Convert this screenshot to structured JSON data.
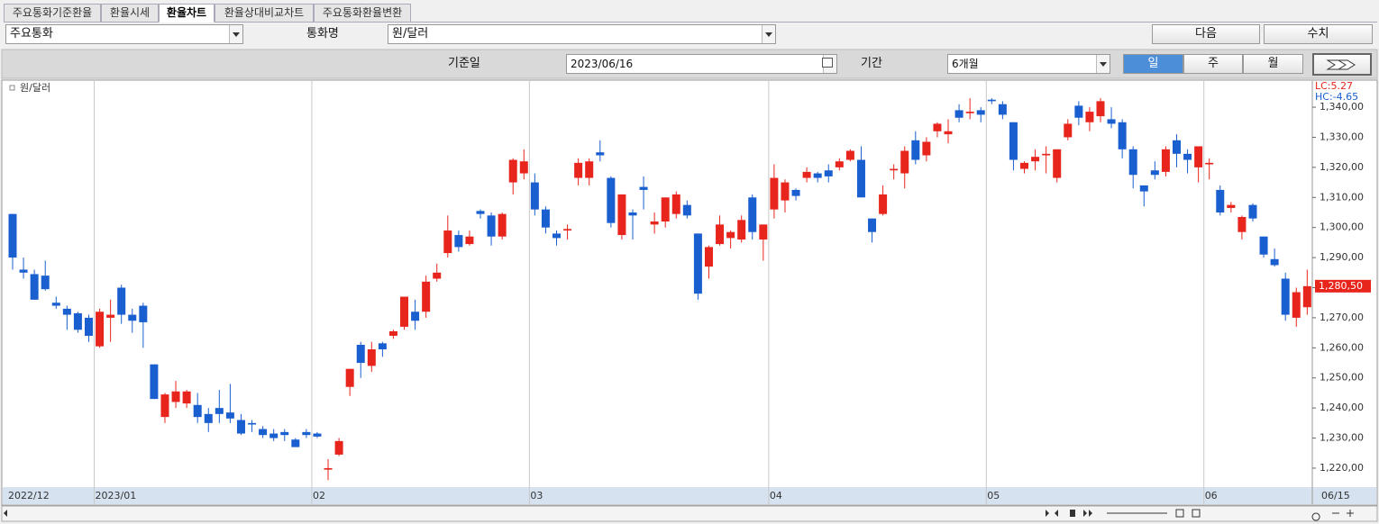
{
  "tabs": [
    "주요통화기준환율",
    "환율시세",
    "환율차트",
    "환율상대비교차트",
    "주요통화환율변환"
  ],
  "toolbar": {
    "group_select": "주요통화",
    "currency_label": "통화명",
    "currency_select": "원/달러",
    "next_button": "다음",
    "value_button": "수치",
    "date_label": "기준일",
    "date": "2023/06/16",
    "period_label": "기간",
    "period_select": "6개월",
    "interval_buttons": [
      "일",
      "주",
      "월"
    ]
  },
  "chart_data": {
    "type": "candlestick",
    "series_name": "원/달러",
    "lc_label": "LC:5.27",
    "hc_label": "HC:-4.65",
    "up_color": "#e8251c",
    "down_color": "#1a5fd0",
    "last_price": {
      "value": 1280.5,
      "label": "1,280,50"
    },
    "ylim": [
      1213.7,
      1348.7
    ],
    "yticks": [
      {
        "value": 1220,
        "label": "1,220,00"
      },
      {
        "value": 1230,
        "label": "1,230,00"
      },
      {
        "value": 1240,
        "label": "1,240,00"
      },
      {
        "value": 1250,
        "label": "1,250,00"
      },
      {
        "value": 1260,
        "label": "1,260,00"
      },
      {
        "value": 1270,
        "label": "1,270,00"
      },
      {
        "value": 1280,
        "label": "1,280,00"
      },
      {
        "value": 1290,
        "label": "1,290,00"
      },
      {
        "value": 1300,
        "label": "1,300,00"
      },
      {
        "value": 1310,
        "label": "1,310,00"
      },
      {
        "value": 1320,
        "label": "1,320,00"
      },
      {
        "value": 1330,
        "label": "1,330,00"
      },
      {
        "value": 1340,
        "label": "1,340,00"
      }
    ],
    "categories": [
      "2022/12",
      null,
      null,
      null,
      null,
      null,
      null,
      null,
      "2023/01",
      null,
      null,
      null,
      null,
      null,
      null,
      null,
      null,
      null,
      null,
      null,
      null,
      null,
      null,
      null,
      null,
      null,
      null,
      null,
      "02",
      null,
      null,
      null,
      null,
      null,
      null,
      null,
      null,
      null,
      null,
      null,
      null,
      null,
      null,
      null,
      null,
      null,
      null,
      null,
      "03",
      null,
      null,
      null,
      null,
      null,
      null,
      null,
      null,
      null,
      null,
      null,
      null,
      null,
      null,
      null,
      null,
      null,
      null,
      null,
      null,
      null,
      "04",
      null,
      null,
      null,
      null,
      null,
      null,
      null,
      null,
      null,
      null,
      null,
      null,
      null,
      null,
      null,
      null,
      null,
      null,
      null,
      "05",
      null,
      null,
      null,
      null,
      null,
      null,
      null,
      null,
      null,
      null,
      null,
      null,
      null,
      null,
      null,
      null,
      null,
      null,
      null,
      "06",
      null,
      null,
      null,
      null,
      null,
      null,
      null,
      null,
      "06/15"
    ],
    "open": [
      1304.5,
      1286,
      1284.5,
      1284,
      1275,
      1273,
      1271.5,
      1270,
      1260.5,
      1270,
      1280,
      1271,
      1274,
      1254.5,
      1237,
      1242,
      1241.5,
      1241,
      1238,
      1240,
      1238.5,
      1236,
      1235,
      1233,
      1231.5,
      1232,
      1229.5,
      1232,
      1231.5,
      1219.5,
      1224.5,
      1247,
      1261,
      1254,
      1261.5,
      1264,
      1267,
      1272,
      1272,
      1283,
      1291.5,
      1297.5,
      1294.5,
      1305.5,
      1304,
      1297,
      1315,
      1318,
      1315,
      1306,
      1298,
      1299,
      1316.5,
      1316.5,
      1325,
      1316.5,
      1297.5,
      1305,
      1313.5,
      1301,
      1302,
      1304.5,
      1307.5,
      1298,
      1287,
      1294.5,
      1296.5,
      1296,
      1310,
      1296,
      1306,
      1309,
      1312.5,
      1316.5,
      1318,
      1319,
      1320,
      1322.5,
      1322.5,
      1303,
      1304.5,
      1319,
      1318,
      1329,
      1324,
      1332,
      1331,
      1339,
      1338,
      1339,
      1342.5,
      1341,
      1335,
      1319.5,
      1322,
      1324,
      1316.5,
      1330,
      1340.5,
      1335,
      1337,
      1336,
      1335,
      1326,
      1314,
      1319,
      1318.5,
      1329,
      1324.5,
      1320,
      1321,
      1312.5,
      1306.5,
      1298.5,
      1307.5,
      1297,
      1289.5,
      1283,
      1270,
      1273.5
    ],
    "high": [
      1304.5,
      1290,
      1286,
      1289,
      1277,
      1274,
      1272,
      1271,
      1273,
      1276,
      1281,
      1273,
      1275,
      1254.5,
      1245,
      1249,
      1246,
      1245,
      1240,
      1246,
      1248,
      1238,
      1236,
      1234,
      1233,
      1233,
      1230,
      1233,
      1232,
      1223,
      1230,
      1253,
      1262,
      1262,
      1262,
      1266,
      1277,
      1276,
      1284,
      1288,
      1304,
      1299,
      1299,
      1306,
      1305,
      1305,
      1323,
      1326,
      1318,
      1307,
      1299,
      1301,
      1323,
      1323,
      1329,
      1317,
      1311,
      1306,
      1317,
      1305,
      1310,
      1312,
      1309,
      1298,
      1294,
      1304,
      1299,
      1304,
      1311,
      1301,
      1321,
      1316,
      1313,
      1320,
      1318.5,
      1321,
      1323,
      1326,
      1327,
      1303,
      1314,
      1321,
      1327,
      1332,
      1330,
      1335,
      1336,
      1341,
      1343,
      1340,
      1343,
      1342,
      1335,
      1322,
      1326,
      1327,
      1326,
      1336,
      1342,
      1340,
      1343,
      1340,
      1336,
      1327,
      1314,
      1322,
      1327,
      1331,
      1326,
      1327,
      1323,
      1314,
      1308.5,
      1304,
      1308,
      1297,
      1293,
      1285,
      1280,
      1286
    ],
    "low": [
      1286,
      1283,
      1276,
      1279,
      1273,
      1266,
      1265,
      1262,
      1260,
      1262,
      1268,
      1265,
      1260,
      1243,
      1235,
      1240,
      1240,
      1235,
      1232,
      1235,
      1235,
      1231,
      1232,
      1230,
      1229,
      1229,
      1227,
      1230,
      1230,
      1216,
      1224,
      1244,
      1250,
      1252,
      1257,
      1263,
      1266,
      1266,
      1270,
      1282,
      1290,
      1292,
      1294,
      1303,
      1294,
      1296,
      1311,
      1316,
      1304,
      1298,
      1294,
      1296,
      1314,
      1314,
      1322,
      1300,
      1296,
      1296,
      1306,
      1298,
      1300,
      1303,
      1303,
      1276,
      1283,
      1294,
      1293,
      1295,
      1296,
      1289,
      1303,
      1305,
      1309,
      1315,
      1315,
      1315,
      1319,
      1322,
      1310,
      1295,
      1304,
      1316,
      1313,
      1321,
      1322,
      1330,
      1328,
      1335,
      1336,
      1335,
      1341,
      1336,
      1319,
      1318,
      1319,
      1318,
      1315,
      1329,
      1334,
      1332,
      1335,
      1333,
      1323,
      1313,
      1307,
      1316,
      1317,
      1320,
      1318,
      1315,
      1316,
      1304,
      1305,
      1296,
      1302,
      1290,
      1287,
      1269,
      1267,
      1271
    ],
    "close": [
      1290,
      1285,
      1276,
      1279.5,
      1274,
      1271,
      1266,
      1264,
      1272,
      1271,
      1271,
      1269,
      1268.5,
      1243,
      1244.5,
      1245.5,
      1245.5,
      1237,
      1235,
      1238,
      1236.5,
      1231.5,
      1234.5,
      1231,
      1230,
      1231,
      1227,
      1231,
      1230.5,
      1220,
      1229,
      1253,
      1255,
      1259.5,
      1259.5,
      1265.5,
      1277,
      1269,
      1282,
      1285,
      1299,
      1293.5,
      1297,
      1304.5,
      1297,
      1304.5,
      1322.5,
      1322,
      1306,
      1300,
      1296.5,
      1299.5,
      1321.5,
      1322,
      1324,
      1301.5,
      1311,
      1304,
      1312.5,
      1302,
      1310,
      1311,
      1304,
      1278,
      1293.5,
      1301,
      1298.5,
      1302.5,
      1298.5,
      1301,
      1316.5,
      1315,
      1310.5,
      1318.5,
      1316.5,
      1317,
      1322,
      1325.5,
      1310,
      1298.5,
      1311,
      1319.5,
      1325.5,
      1322.5,
      1328.5,
      1334.5,
      1332,
      1336.5,
      1338.5,
      1337.5,
      1342,
      1337.5,
      1322.5,
      1321.5,
      1323.5,
      1324.5,
      1326,
      1334.5,
      1336.5,
      1338.5,
      1342,
      1334.5,
      1326,
      1317.5,
      1312,
      1317.5,
      1326,
      1324.5,
      1322.5,
      1327,
      1321.5,
      1305,
      1307.5,
      1303.5,
      1303,
      1291,
      1287.5,
      1271,
      1278.5,
      1280.5
    ]
  }
}
